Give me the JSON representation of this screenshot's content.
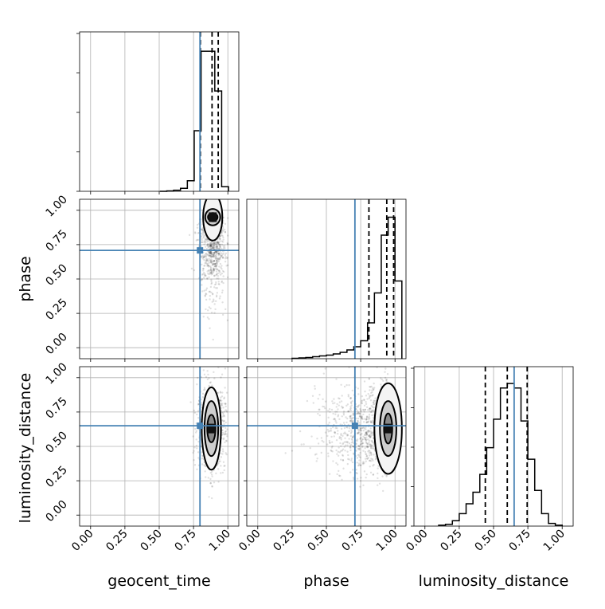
{
  "chart_data": {
    "type": "corner",
    "parameters": [
      "geocent_time",
      "phase",
      "luminosity_distance"
    ],
    "tick_labels": [
      "0.00",
      "0.25",
      "0.50",
      "0.75",
      "1.00"
    ],
    "tick_values": [
      0,
      0.25,
      0.5,
      0.75,
      1.0
    ],
    "range": [
      -0.08,
      1.08
    ],
    "grid": true,
    "truths": {
      "geocent_time": 0.797,
      "phase": 0.708,
      "luminosity_distance": 0.65
    },
    "quantiles": {
      "geocent_time": [
        0.8,
        0.885,
        0.93
      ],
      "phase": [
        0.81,
        0.94,
        0.99
      ],
      "luminosity_distance": [
        0.44,
        0.6,
        0.745
      ]
    },
    "histograms": {
      "geocent_time": {
        "edges": [
          0.505,
          0.555,
          0.605,
          0.655,
          0.705,
          0.755,
          0.805,
          0.855,
          0.905,
          0.955,
          1.005
        ],
        "counts": [
          0,
          1,
          3,
          8,
          28,
          160,
          370,
          370,
          265,
          12
        ],
        "ymax": 400
      },
      "phase": {
        "edges": [
          0.25,
          0.3,
          0.35,
          0.4,
          0.45,
          0.5,
          0.55,
          0.6,
          0.65,
          0.7,
          0.75,
          0.8,
          0.85,
          0.9,
          0.95,
          1.0,
          1.05
        ],
        "counts": [
          1,
          2,
          3,
          5,
          7,
          9,
          12,
          16,
          22,
          30,
          45,
          90,
          165,
          310,
          355,
          195
        ],
        "ymax": 380
      },
      "luminosity_distance": {
        "edges": [
          0.1,
          0.15,
          0.2,
          0.25,
          0.3,
          0.35,
          0.4,
          0.45,
          0.5,
          0.55,
          0.6,
          0.65,
          0.7,
          0.75,
          0.8,
          0.85,
          0.9,
          0.95,
          1.0
        ],
        "counts": [
          1,
          2,
          6,
          14,
          25,
          38,
          58,
          88,
          120,
          155,
          160,
          155,
          118,
          75,
          40,
          14,
          3,
          1
        ],
        "ymax": 170
      }
    },
    "posteriors_2d": {
      "phase_vs_geocent_time": {
        "center": [
          0.89,
          0.95
        ],
        "spread": [
          0.045,
          0.16
        ],
        "contours": [
          [
            0.035,
            0.03
          ],
          [
            0.055,
            0.06
          ],
          [
            0.07,
            0.17
          ]
        ]
      },
      "luminosity_distance_vs_geocent_time": {
        "center": [
          0.88,
          0.63
        ],
        "spread": [
          0.05,
          0.15
        ],
        "contours": [
          [
            0.03,
            0.1
          ],
          [
            0.05,
            0.2
          ],
          [
            0.07,
            0.3
          ]
        ]
      },
      "luminosity_distance_vs_phase": {
        "center": [
          0.95,
          0.63
        ],
        "spread": [
          0.1,
          0.16
        ],
        "contours": [
          [
            0.03,
            0.11
          ],
          [
            0.06,
            0.2
          ],
          [
            0.1,
            0.33
          ]
        ]
      }
    },
    "colors": {
      "truth": "#4682b4",
      "hist": "#000000",
      "points": "#000000",
      "grid": "#b0b0b0"
    }
  }
}
